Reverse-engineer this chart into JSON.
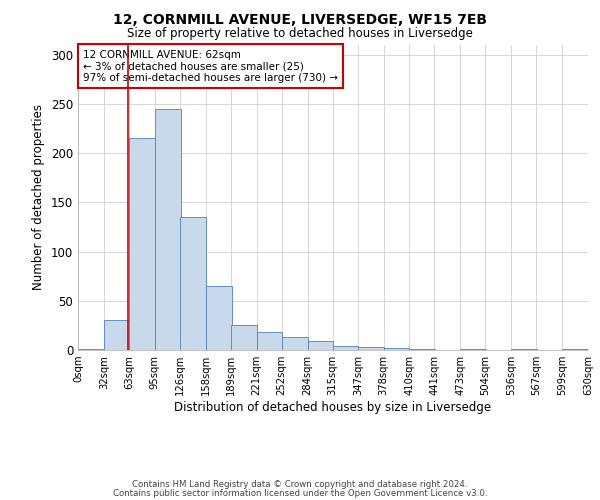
{
  "title1": "12, CORNMILL AVENUE, LIVERSEDGE, WF15 7EB",
  "title2": "Size of property relative to detached houses in Liversedge",
  "xlabel": "Distribution of detached houses by size in Liversedge",
  "ylabel": "Number of detached properties",
  "annotation_line1": "12 CORNMILL AVENUE: 62sqm",
  "annotation_line2": "← 3% of detached houses are smaller (25)",
  "annotation_line3": "97% of semi-detached houses are larger (730) →",
  "property_size": 62,
  "bins_start": [
    0,
    32,
    63,
    95,
    126,
    158,
    189,
    221,
    252,
    284,
    315,
    347,
    378,
    410,
    441,
    473,
    504,
    536,
    567,
    599
  ],
  "bin_labels": [
    "0sqm",
    "32sqm",
    "63sqm",
    "95sqm",
    "126sqm",
    "158sqm",
    "189sqm",
    "221sqm",
    "252sqm",
    "284sqm",
    "315sqm",
    "347sqm",
    "378sqm",
    "410sqm",
    "441sqm",
    "473sqm",
    "504sqm",
    "536sqm",
    "567sqm",
    "599sqm",
    "630sqm"
  ],
  "values": [
    1,
    30,
    215,
    245,
    135,
    65,
    25,
    18,
    13,
    9,
    4,
    3,
    2,
    1,
    0,
    1,
    0,
    1,
    0,
    1
  ],
  "bar_color": "#c9d9ec",
  "bar_edge_color": "#4f81bd",
  "marker_color": "#cc0000",
  "annotation_box_edge": "#cc0000",
  "grid_color": "#d0d0d0",
  "background_color": "#ffffff",
  "footer1": "Contains HM Land Registry data © Crown copyright and database right 2024.",
  "footer2": "Contains public sector information licensed under the Open Government Licence v3.0.",
  "ylim": [
    0,
    310
  ],
  "yticks": [
    0,
    50,
    100,
    150,
    200,
    250,
    300
  ]
}
